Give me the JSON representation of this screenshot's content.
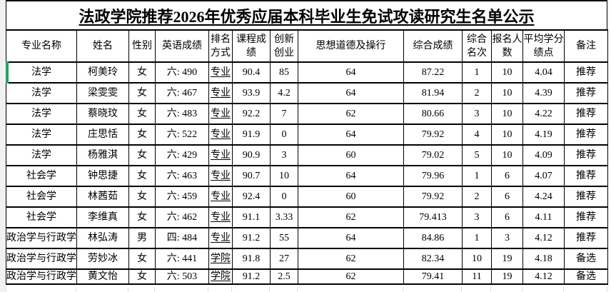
{
  "title": "法政学院推荐2026年优秀应届本科毕业生免试攻读研究生名单公示",
  "selection": {
    "indicator_color": "#21a366",
    "selected_cell": "法学"
  },
  "table": {
    "columns": [
      "专业名称",
      "姓名",
      "性别",
      "英语成绩",
      "排名方式",
      "课程成绩",
      "创新创业",
      "思想道德及操行",
      "综合成绩",
      "综合名次",
      "报名人数",
      "平均学分绩点",
      "备注"
    ],
    "rows": [
      [
        "法学",
        "柯美玲",
        "女",
        "六: 490",
        "专业",
        "90.4",
        "85",
        "64",
        "87.22",
        "1",
        "10",
        "4.04",
        "推荐"
      ],
      [
        "法学",
        "梁雯雯",
        "女",
        "六: 467",
        "专业",
        "93.9",
        "4.2",
        "64",
        "81.94",
        "2",
        "10",
        "4.39",
        "推荐"
      ],
      [
        "法学",
        "蔡晓玟",
        "女",
        "六: 483",
        "专业",
        "92.2",
        "7",
        "62",
        "80.66",
        "3",
        "10",
        "4.22",
        "推荐"
      ],
      [
        "法学",
        "庄思恬",
        "女",
        "六: 522",
        "专业",
        "91.9",
        "0",
        "64",
        "79.92",
        "4",
        "10",
        "4.19",
        "推荐"
      ],
      [
        "法学",
        "杨雅淇",
        "女",
        "六: 429",
        "专业",
        "90.9",
        "3",
        "60",
        "79.02",
        "5",
        "10",
        "4.09",
        "推荐"
      ],
      [
        "社会学",
        "钟思捷",
        "女",
        "六: 463",
        "专业",
        "90.7",
        "10",
        "64",
        "79.96",
        "1",
        "6",
        "4.07",
        "推荐"
      ],
      [
        "社会学",
        "林茜茹",
        "女",
        "六: 459",
        "专业",
        "92.4",
        "0",
        "60",
        "79.92",
        "2",
        "6",
        "4.24",
        "推荐"
      ],
      [
        "社会学",
        "李维真",
        "女",
        "六: 462",
        "专业",
        "91.1",
        "3.33",
        "62",
        "79.413",
        "3",
        "6",
        "4.11",
        "推荐"
      ],
      [
        "政治学与行政学",
        "林弘涛",
        "男",
        "四: 484",
        "专业",
        "91.2",
        "55",
        "64",
        "84.86",
        "1",
        "3",
        "4.12",
        "推荐"
      ],
      [
        "政治学与行政学",
        "劳妙冰",
        "女",
        "六: 441",
        "学院",
        "91.8",
        "27",
        "62",
        "82.34",
        "10",
        "19",
        "4.18",
        "备选"
      ],
      [
        "政治学与行政学",
        "黄文怡",
        "女",
        "六: 503",
        "学院",
        "91.2",
        "2.5",
        "62",
        "79.41",
        "11",
        "19",
        "4.12",
        "备选"
      ]
    ]
  }
}
